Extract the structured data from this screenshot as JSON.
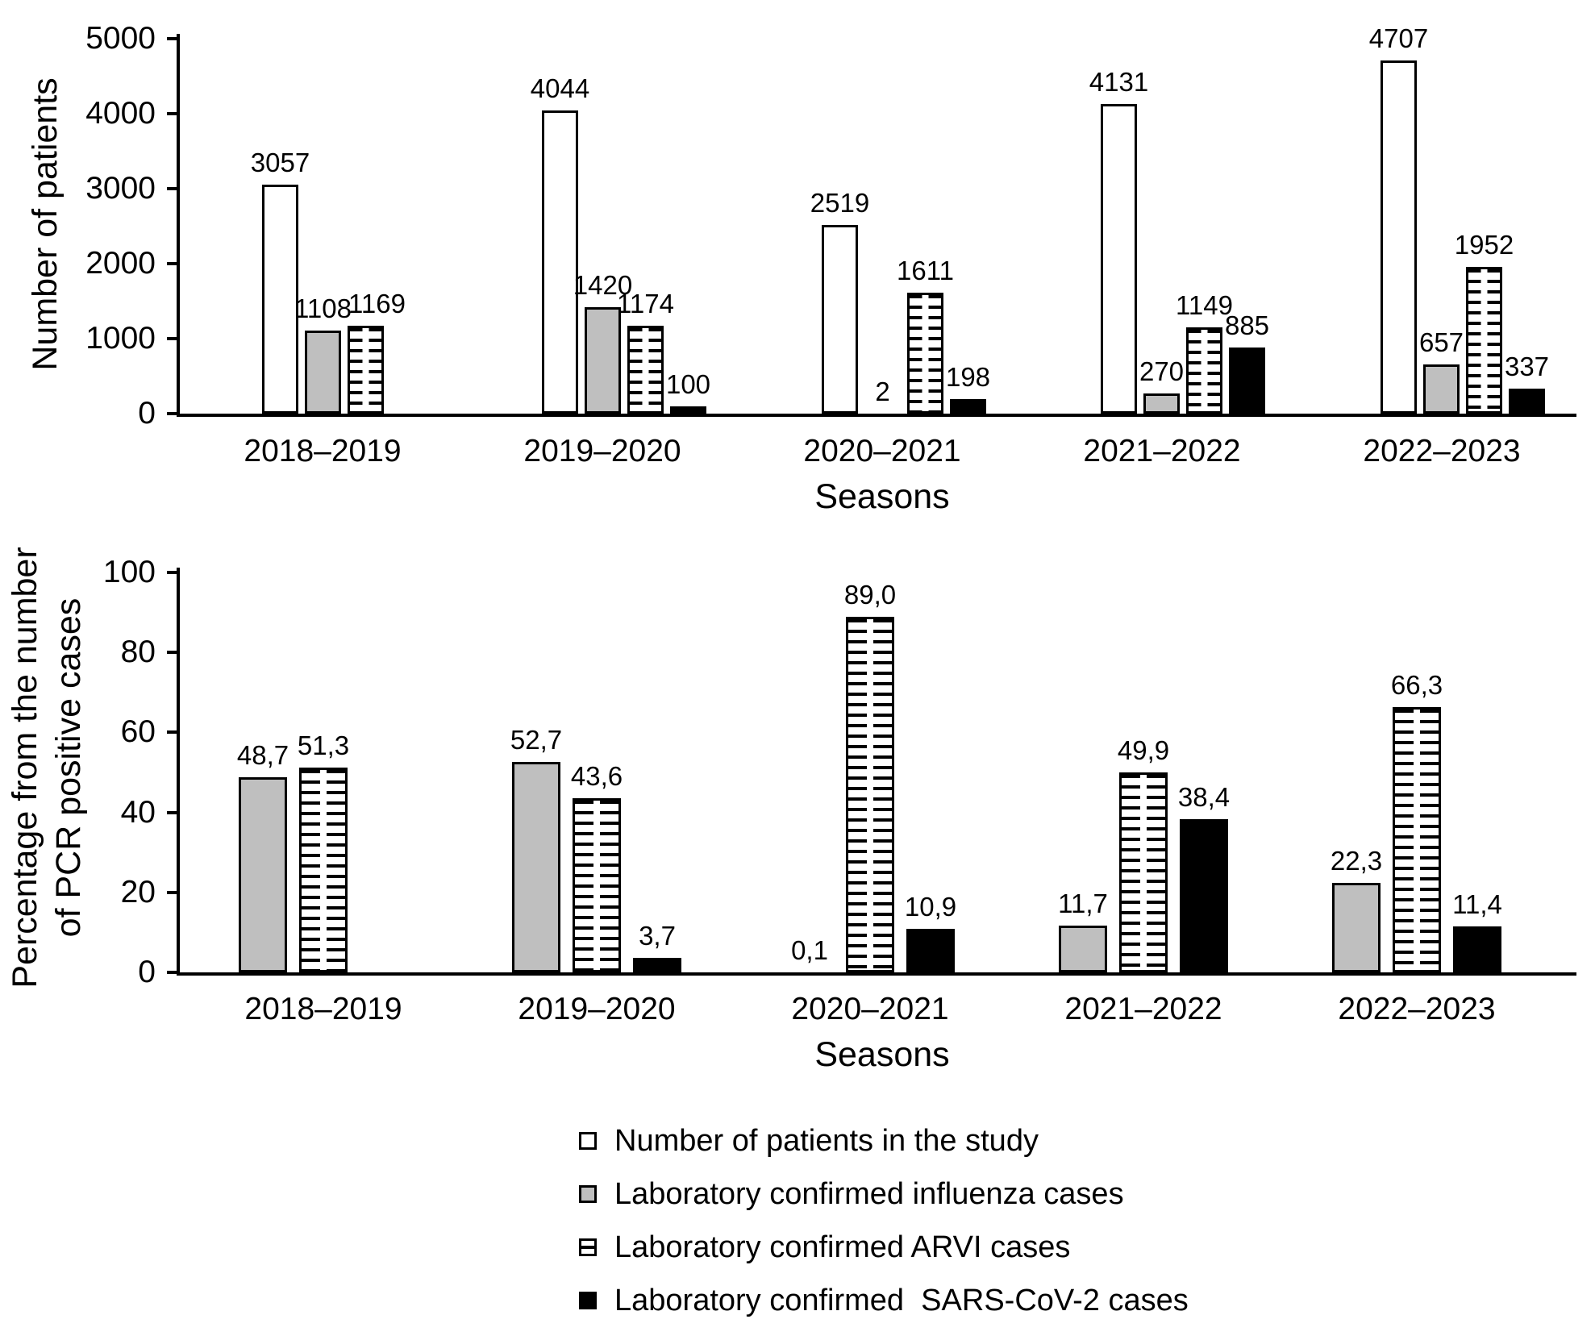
{
  "chart_data": [
    {
      "name": "patients-by-season",
      "type": "bar",
      "title": "",
      "ylabel": "Number of patients",
      "xlabel": "Seasons",
      "ylim": [
        0,
        5000
      ],
      "grid": false,
      "y_axis": {
        "ticks": [
          {
            "value": 0,
            "label": "0"
          },
          {
            "value": 1000,
            "label": "1000"
          },
          {
            "value": 2000,
            "label": "2000"
          },
          {
            "value": 3000,
            "label": "3000"
          },
          {
            "value": 4000,
            "label": "4000"
          },
          {
            "value": 5000,
            "label": "5000"
          }
        ]
      },
      "x_axis": {
        "categories": [
          "2018–2019",
          "2019–2020",
          "2020–2021",
          "2021–2022",
          "2022–2023"
        ]
      },
      "series": [
        {
          "name": "Number of patients in the study",
          "style": "white",
          "values": [
            3057,
            4044,
            2519,
            4131,
            4707
          ],
          "labels": [
            "3057",
            "4044",
            "2519",
            "4131",
            "4707"
          ]
        },
        {
          "name": "Laboratory confirmed influenza cases",
          "style": "gray",
          "values": [
            1108,
            1420,
            2,
            270,
            657
          ],
          "labels": [
            "1108",
            "1420",
            "2",
            "270",
            "657"
          ]
        },
        {
          "name": "Laboratory confirmed ARVI cases",
          "style": "striped",
          "values": [
            1169,
            1174,
            1611,
            1149,
            1952
          ],
          "labels": [
            "1169",
            "1174",
            "1611",
            "1149",
            "1952"
          ]
        },
        {
          "name": "Laboratory confirmed SARS-CoV-2 cases",
          "style": "black",
          "values": [
            null,
            100,
            198,
            885,
            337
          ],
          "labels": [
            null,
            "100",
            "198",
            "885",
            "337"
          ]
        }
      ]
    },
    {
      "name": "pcr-positive-percentage-by-season",
      "type": "bar",
      "title": "",
      "ylabel_lines": [
        "Percentage from the number",
        "of PCR positive cases"
      ],
      "xlabel": "Seasons",
      "ylim": [
        0,
        100
      ],
      "grid": false,
      "y_axis": {
        "ticks": [
          {
            "value": 0,
            "label": "0"
          },
          {
            "value": 20,
            "label": "20"
          },
          {
            "value": 40,
            "label": "40"
          },
          {
            "value": 60,
            "label": "60"
          },
          {
            "value": 80,
            "label": "80"
          },
          {
            "value": 100,
            "label": "100"
          }
        ]
      },
      "x_axis": {
        "categories": [
          "2018–2019",
          "2019–2020",
          "2020–2021",
          "2021–2022",
          "2022–2023"
        ]
      },
      "series": [
        {
          "name": "Laboratory confirmed influenza cases",
          "style": "gray",
          "values": [
            48.7,
            52.7,
            0.1,
            11.7,
            22.3
          ],
          "labels": [
            "48,7",
            "52,7",
            "0,1",
            "11,7",
            "22,3"
          ]
        },
        {
          "name": "Laboratory confirmed ARVI cases",
          "style": "striped",
          "values": [
            51.3,
            43.6,
            89.0,
            49.9,
            66.3
          ],
          "labels": [
            "51,3",
            "43,6",
            "89,0",
            "49,9",
            "66,3"
          ]
        },
        {
          "name": "Laboratory confirmed SARS-CoV-2 cases",
          "style": "black",
          "values": [
            null,
            3.7,
            10.9,
            38.4,
            11.4
          ],
          "labels": [
            null,
            "3,7",
            "10,9",
            "38,4",
            "11,4"
          ]
        }
      ]
    }
  ],
  "legend": {
    "items": [
      {
        "label": "Number of patients in the study",
        "style": "white"
      },
      {
        "label": "Laboratory confirmed influenza cases",
        "style": "gray"
      },
      {
        "label": "Laboratory confirmed ARVI cases",
        "style": "striped"
      },
      {
        "label": "Laboratory confirmed  SARS-CoV-2 cases",
        "style": "black"
      }
    ]
  }
}
